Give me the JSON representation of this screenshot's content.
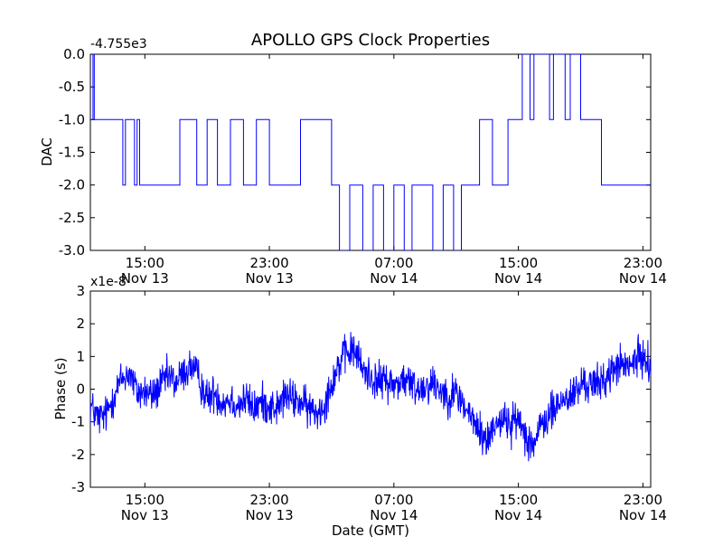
{
  "title": "APOLLO GPS Clock Properties",
  "chart_data": [
    {
      "type": "line",
      "panel": "top",
      "ylabel": "DAC",
      "offset_label": "-4.755e3",
      "ylim": [
        -3.0,
        0.0
      ],
      "yticks": [
        "0.0",
        "-0.5",
        "-1.0",
        "-1.5",
        "-2.0",
        "-2.5",
        "-3.0"
      ],
      "xlim": [
        "Nov 13 11:30",
        "Nov 14 23:30"
      ],
      "xticks": [
        {
          "time": "15:00",
          "date": "Nov 13"
        },
        {
          "time": "23:00",
          "date": "Nov 13"
        },
        {
          "time": "07:00",
          "date": "Nov 14"
        },
        {
          "time": "15:00",
          "date": "Nov 14"
        },
        {
          "time": "23:00",
          "date": "Nov 14"
        }
      ],
      "color": "#0000ff",
      "series": [
        {
          "x": [
            "Nov 13 11:30",
            "Nov 13 11:40",
            "Nov 13 11:45",
            "Nov 13 12:00",
            "Nov 13 13:35",
            "Nov 13 13:45",
            "Nov 13 14:20",
            "Nov 13 14:30",
            "Nov 13 14:40",
            "Nov 13 17:00",
            "Nov 13 17:15",
            "Nov 13 18:20",
            "Nov 13 19:00",
            "Nov 13 19:40",
            "Nov 13 20:30",
            "Nov 13 21:20",
            "Nov 13 22:10",
            "Nov 13 23:00",
            "Nov 14 00:00",
            "Nov 14 01:00",
            "Nov 14 02:10",
            "Nov 14 03:00",
            "Nov 14 03:30",
            "Nov 14 04:10",
            "Nov 14 05:00",
            "Nov 14 05:40",
            "Nov 14 06:20",
            "Nov 14 07:00",
            "Nov 14 07:40",
            "Nov 14 08:10",
            "Nov 14 08:40",
            "Nov 14 09:30",
            "Nov 14 10:10",
            "Nov 14 10:50",
            "Nov 14 11:20",
            "Nov 14 11:50",
            "Nov 14 12:30",
            "Nov 14 13:20",
            "Nov 14 14:20",
            "Nov 14 15:00",
            "Nov 14 15:15",
            "Nov 14 15:45",
            "Nov 14 16:00",
            "Nov 14 17:00",
            "Nov 14 17:15",
            "Nov 14 18:00",
            "Nov 14 18:20",
            "Nov 14 19:00",
            "Nov 14 20:00",
            "Nov 14 20:20",
            "Nov 14 21:00",
            "Nov 14 23:30"
          ],
          "values": [
            -1.0,
            0.0,
            -1.0,
            -1.0,
            -2.0,
            -1.0,
            -2.0,
            -1.0,
            -2.0,
            -2.0,
            -1.0,
            -2.0,
            -1.0,
            -2.0,
            -1.0,
            -2.0,
            -1.0,
            -2.0,
            -2.0,
            -1.0,
            -1.0,
            -2.0,
            -3.0,
            -2.0,
            -3.0,
            -2.0,
            -3.0,
            -2.0,
            -3.0,
            -2.0,
            -2.0,
            -3.0,
            -2.0,
            -3.0,
            -2.0,
            -2.0,
            -1.0,
            -2.0,
            -1.0,
            -1.0,
            0.0,
            -1.0,
            0.0,
            -1.0,
            0.0,
            -1.0,
            0.0,
            -1.0,
            -1.0,
            -2.0,
            -2.0,
            -2.0
          ]
        }
      ]
    },
    {
      "type": "line",
      "panel": "bottom",
      "ylabel": "Phase (s)",
      "xlabel": "Date (GMT)",
      "offset_label": "x1e-8",
      "ylim": [
        -3,
        3
      ],
      "yticks": [
        "3",
        "2",
        "1",
        "0",
        "-1",
        "-2",
        "-3"
      ],
      "xlim": [
        "Nov 13 11:30",
        "Nov 14 23:30"
      ],
      "xticks": [
        {
          "time": "15:00",
          "date": "Nov 13"
        },
        {
          "time": "23:00",
          "date": "Nov 13"
        },
        {
          "time": "07:00",
          "date": "Nov 14"
        },
        {
          "time": "15:00",
          "date": "Nov 14"
        },
        {
          "time": "23:00",
          "date": "Nov 14"
        }
      ],
      "color": "#0000ff",
      "series": [
        {
          "x": [
            "Nov 13 11:30",
            "Nov 13 12:00",
            "Nov 13 12:30",
            "Nov 13 13:00",
            "Nov 13 13:30",
            "Nov 13 14:00",
            "Nov 13 14:30",
            "Nov 13 15:00",
            "Nov 13 15:30",
            "Nov 13 16:00",
            "Nov 13 16:30",
            "Nov 13 17:00",
            "Nov 13 17:30",
            "Nov 13 18:00",
            "Nov 13 18:30",
            "Nov 13 19:00",
            "Nov 13 19:30",
            "Nov 13 20:00",
            "Nov 13 20:30",
            "Nov 13 21:00",
            "Nov 13 21:30",
            "Nov 13 22:00",
            "Nov 13 22:30",
            "Nov 13 23:00",
            "Nov 13 23:30",
            "Nov 14 00:00",
            "Nov 14 00:30",
            "Nov 14 01:00",
            "Nov 14 01:30",
            "Nov 14 02:00",
            "Nov 14 02:30",
            "Nov 14 03:00",
            "Nov 14 03:30",
            "Nov 14 04:00",
            "Nov 14 04:30",
            "Nov 14 05:00",
            "Nov 14 05:30",
            "Nov 14 06:00",
            "Nov 14 06:30",
            "Nov 14 07:00",
            "Nov 14 07:30",
            "Nov 14 08:00",
            "Nov 14 08:30",
            "Nov 14 09:00",
            "Nov 14 09:30",
            "Nov 14 10:00",
            "Nov 14 10:30",
            "Nov 14 11:00",
            "Nov 14 11:30",
            "Nov 14 12:00",
            "Nov 14 12:30",
            "Nov 14 13:00",
            "Nov 14 13:30",
            "Nov 14 14:00",
            "Nov 14 14:30",
            "Nov 14 15:00",
            "Nov 14 15:30",
            "Nov 14 16:00",
            "Nov 14 16:30",
            "Nov 14 17:00",
            "Nov 14 17:30",
            "Nov 14 18:00",
            "Nov 14 18:30",
            "Nov 14 19:00",
            "Nov 14 19:30",
            "Nov 14 20:00",
            "Nov 14 20:30",
            "Nov 14 21:00",
            "Nov 14 21:30",
            "Nov 14 22:00",
            "Nov 14 22:30",
            "Nov 14 23:00",
            "Nov 14 23:30"
          ],
          "values": [
            -0.5,
            -0.9,
            -0.8,
            -0.2,
            0.3,
            0.5,
            -0.1,
            -0.1,
            -0.2,
            0.1,
            0.4,
            0.2,
            0.5,
            0.7,
            0.3,
            -0.3,
            -0.1,
            -0.4,
            -0.3,
            -0.5,
            -0.3,
            -0.6,
            -0.4,
            -0.5,
            -0.6,
            -0.2,
            -0.3,
            -0.4,
            -0.6,
            -0.7,
            -0.5,
            0.2,
            0.8,
            1.1,
            1.2,
            0.6,
            0.4,
            0.2,
            0.3,
            0.1,
            0.3,
            0.2,
            0.0,
            0.1,
            0.2,
            0.0,
            -0.2,
            -0.1,
            -0.5,
            -0.9,
            -1.3,
            -1.6,
            -1.0,
            -0.9,
            -1.1,
            -0.9,
            -1.4,
            -1.7,
            -1.1,
            -0.8,
            -0.5,
            -0.3,
            -0.2,
            0.1,
            0.2,
            0.1,
            0.3,
            0.5,
            0.8,
            0.6,
            0.9,
            1.0,
            0.7
          ],
          "noise_amplitude": 0.45
        }
      ]
    }
  ]
}
